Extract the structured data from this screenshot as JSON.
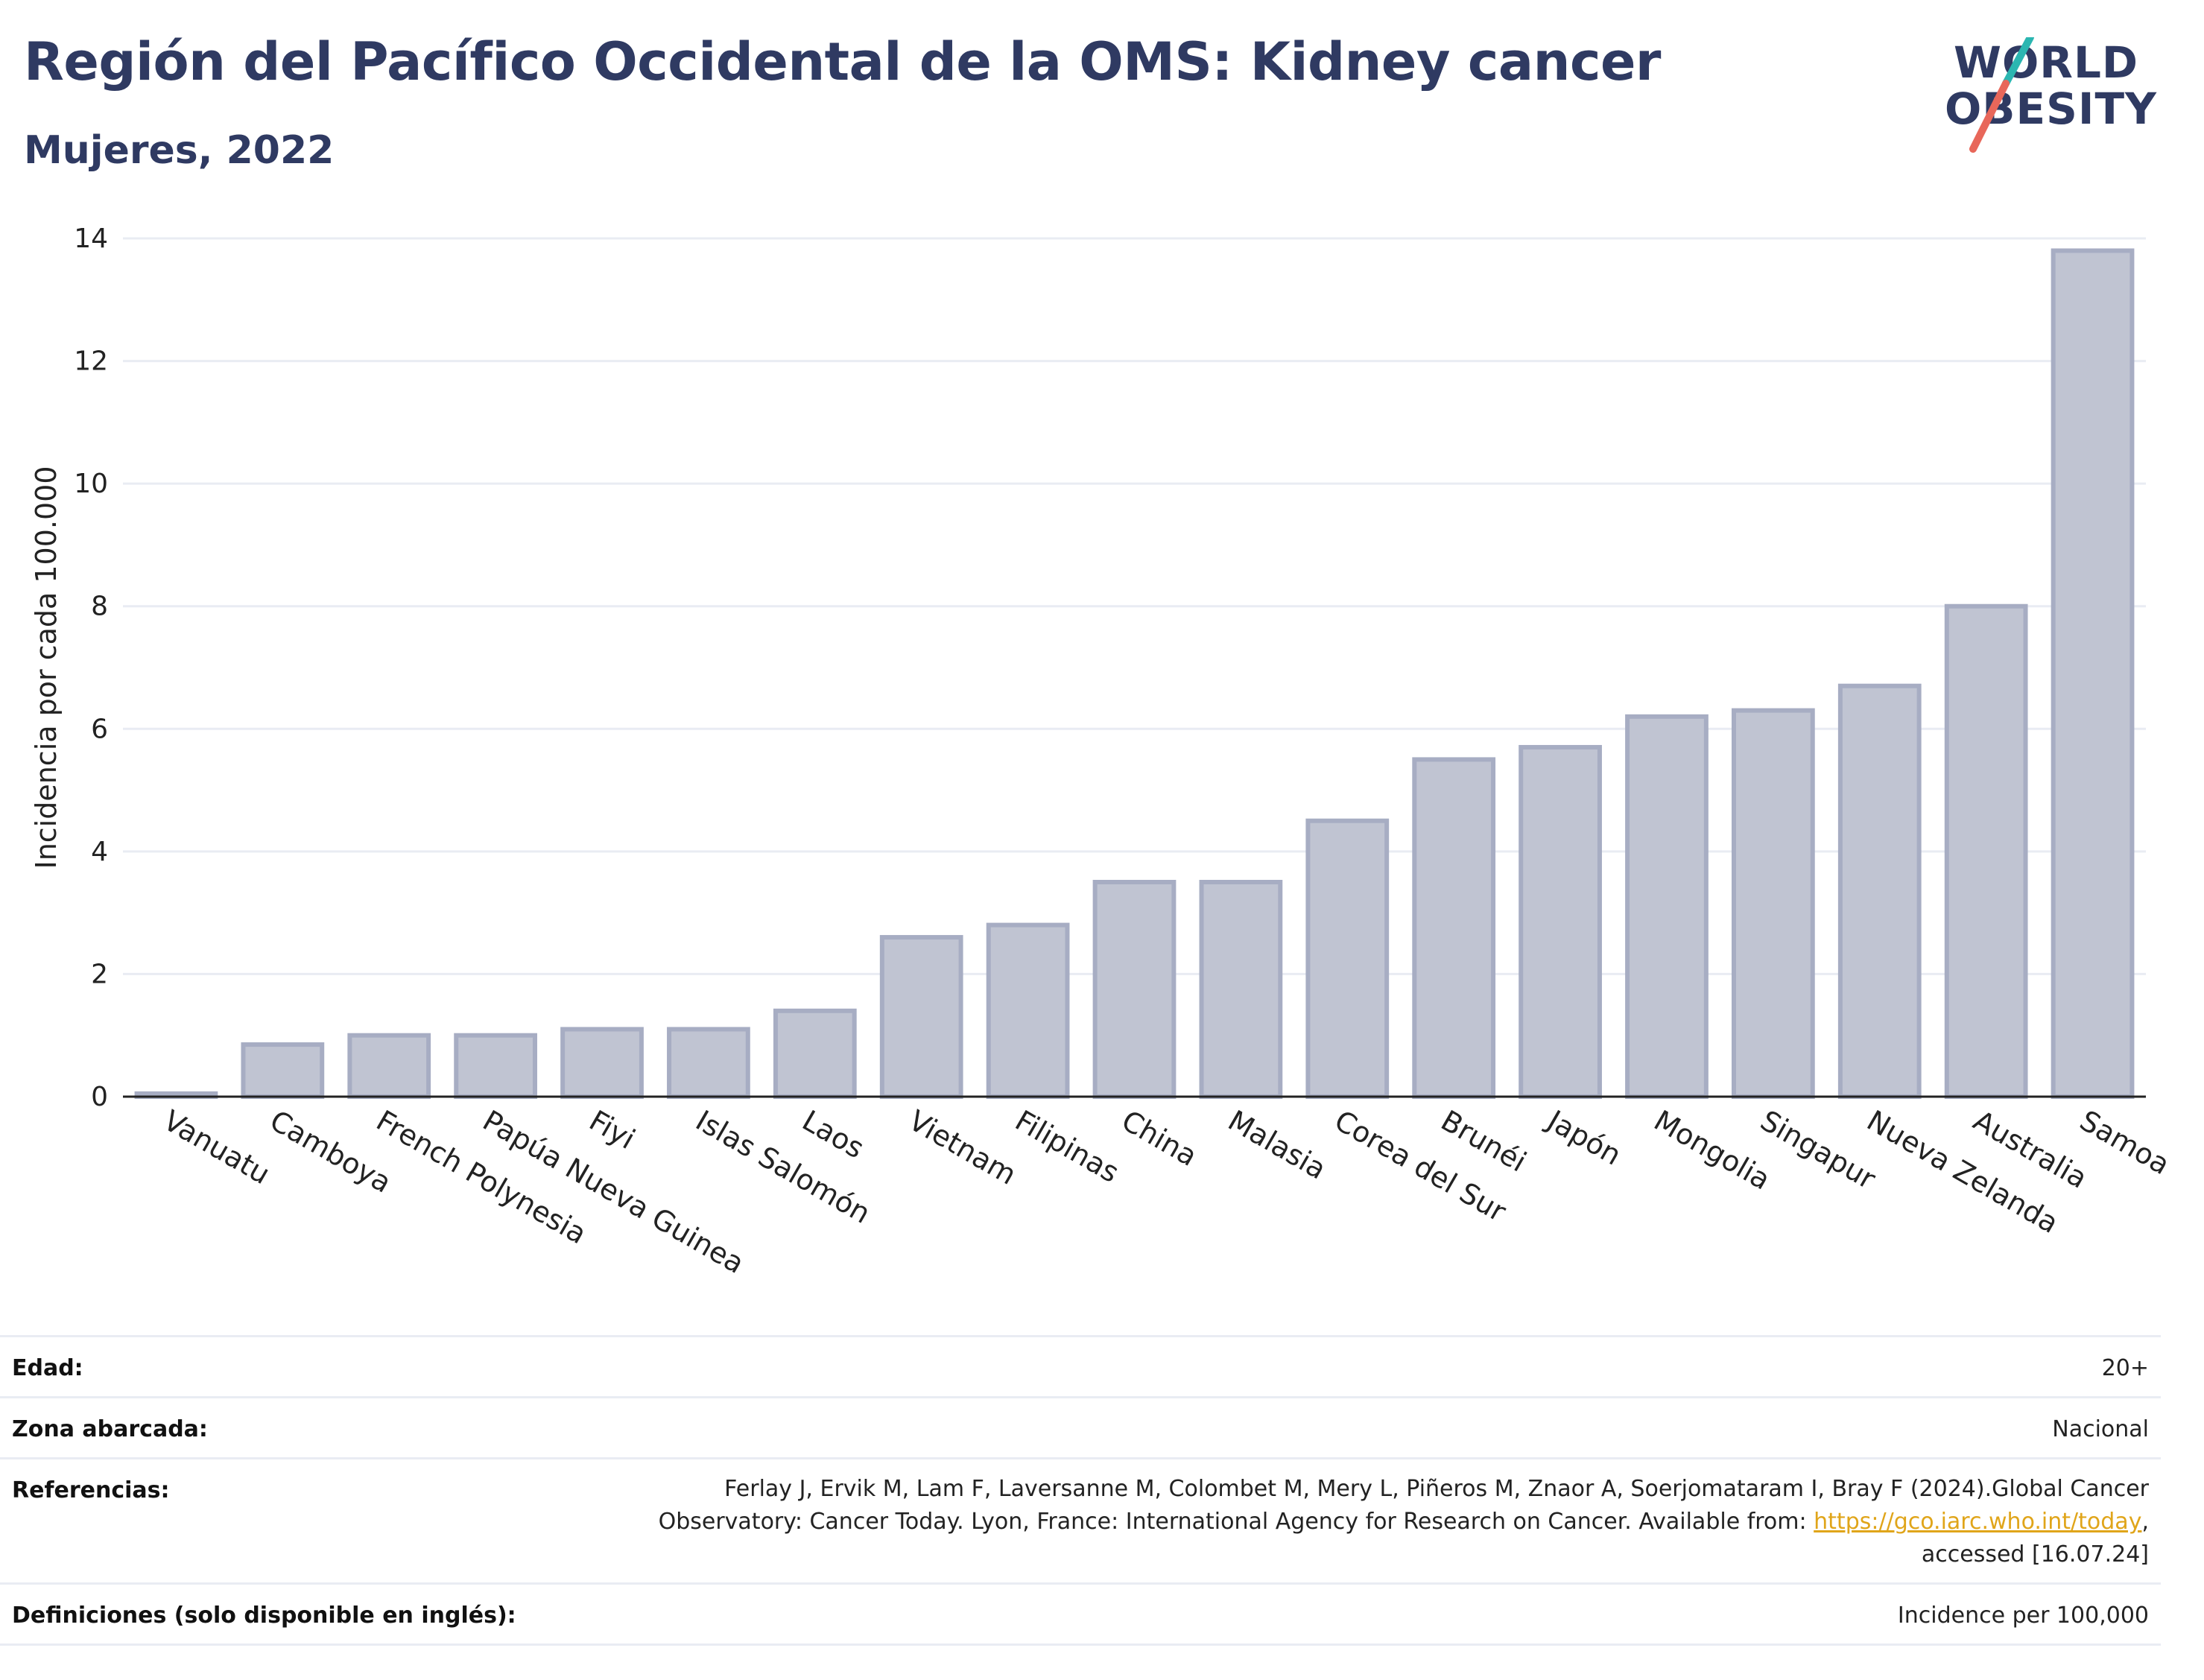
{
  "title": "Región del Pacífico Occidental de la OMS: Kidney cancer",
  "subtitle": "Mujeres, 2022",
  "logo": {
    "line1": "WORLD",
    "line2": "OBESITY",
    "accent_teal": "#2bb6b1",
    "accent_red": "#e8675a"
  },
  "chart_data": {
    "type": "bar",
    "categories": [
      "Vanuatu",
      "Camboya",
      "French Polynesia",
      "Papúa Nueva Guinea",
      "Fiyi",
      "Islas Salomón",
      "Laos",
      "Vietnam",
      "Filipinas",
      "China",
      "Malasia",
      "Corea del Sur",
      "Brunéi",
      "Japón",
      "Mongolia",
      "Singapur",
      "Nueva Zelanda",
      "Australia",
      "Samoa"
    ],
    "values": [
      0.05,
      0.85,
      1.0,
      1.0,
      1.1,
      1.1,
      1.4,
      2.6,
      2.8,
      3.5,
      3.5,
      4.5,
      5.5,
      5.7,
      6.2,
      6.3,
      6.7,
      8.0,
      13.8
    ],
    "ylabel": "Incidencia por cada 100.000",
    "xlabel": "",
    "ylim": [
      0,
      14
    ],
    "yticks": [
      0,
      2,
      4,
      6,
      8,
      10,
      12,
      14
    ],
    "grid": true,
    "bar_fill": "#c0c4d2",
    "bar_stroke": "#a7adc3",
    "axis_color": "#222222",
    "grid_color": "#e9ecf3"
  },
  "meta": {
    "age_label": "Edad:",
    "age_value": "20+",
    "area_label": "Zona abarcada:",
    "area_value": "Nacional",
    "ref_label": "Referencias:",
    "ref_line1": "Ferlay J, Ervik M, Lam F, Laversanne M, Colombet M, Mery L, Piñeros M, Znaor A, Soerjomataram I, Bray F (2024).Global Cancer",
    "ref_line2_pre": "Observatory: Cancer Today. Lyon, France: International Agency for Research on Cancer. Available from: ",
    "ref_link": "https://gco.iarc.who.int/today",
    "ref_line2_post": ",",
    "ref_line3": "accessed [16.07.24]",
    "def_label": "Definiciones (solo disponible en inglés):",
    "def_value": "Incidence per 100,000"
  }
}
